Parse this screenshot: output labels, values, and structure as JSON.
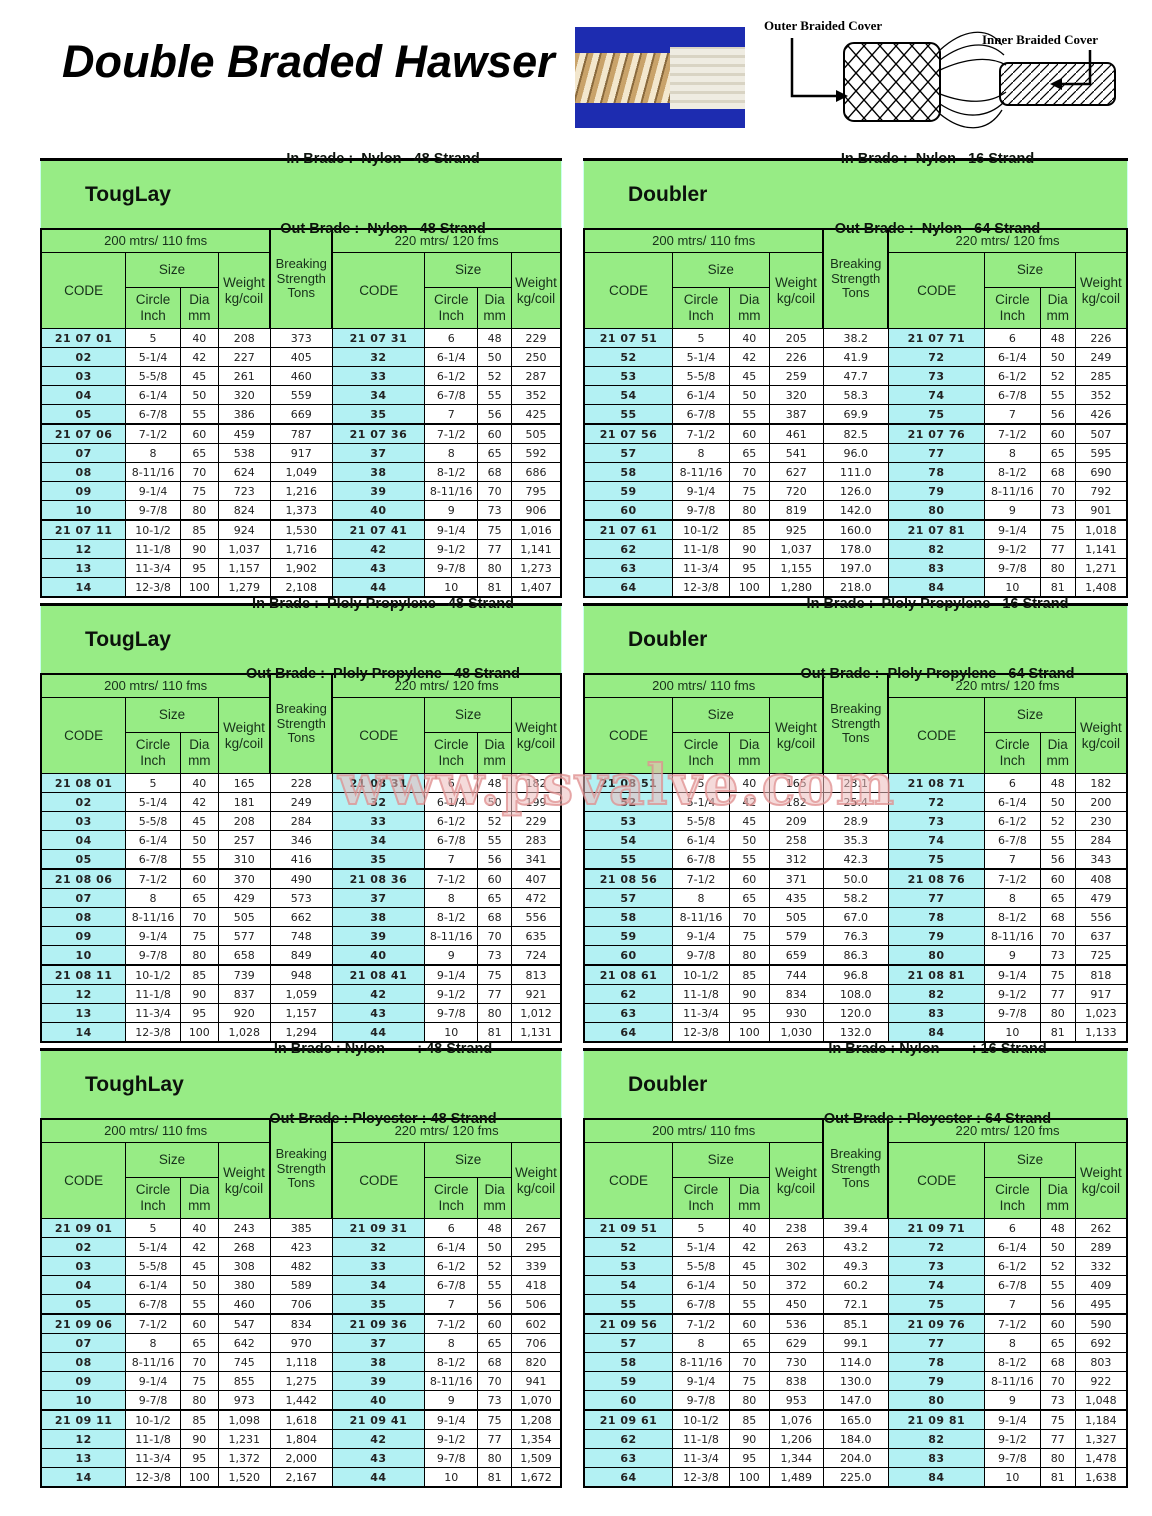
{
  "page": {
    "title": "Double Braded Hawser",
    "watermark": "www.psvalve.com",
    "outer_label": "Outer Braided Cover",
    "inner_label": "Inner Braided Cover"
  },
  "columns": {
    "span_200": "200 mtrs/ 110 fms",
    "span_220": "220 mtrs/ 120 fms",
    "code": "CODE",
    "size": "Size",
    "circle": "Circle\nInch",
    "dia": "Dia\nmm",
    "weight": "Weight\nkg/coil",
    "breaking": "Breaking\nStrength\nTons"
  },
  "tables": [
    {
      "title": "TougLay",
      "in_brade": "In Brade :  Nylon   48 Strand",
      "out_brade": "Out Brade :  Nylon   48 Strand",
      "rows": [
        [
          "21 07 01",
          "5",
          "40",
          "208",
          "373",
          "21 07 31",
          "6",
          "48",
          "229"
        ],
        [
          "02",
          "5-1/4",
          "42",
          "227",
          "405",
          "32",
          "6-1/4",
          "50",
          "250"
        ],
        [
          "03",
          "5-5/8",
          "45",
          "261",
          "460",
          "33",
          "6-1/2",
          "52",
          "287"
        ],
        [
          "04",
          "6-1/4",
          "50",
          "320",
          "559",
          "34",
          "6-7/8",
          "55",
          "352"
        ],
        [
          "05",
          "6-7/8",
          "55",
          "386",
          "669",
          "35",
          "7",
          "56",
          "425"
        ],
        [
          "21 07 06",
          "7-1/2",
          "60",
          "459",
          "787",
          "21 07 36",
          "7-1/2",
          "60",
          "505"
        ],
        [
          "07",
          "8",
          "65",
          "538",
          "917",
          "37",
          "8",
          "65",
          "592"
        ],
        [
          "08",
          "8-11/16",
          "70",
          "624",
          "1,049",
          "38",
          "8-1/2",
          "68",
          "686"
        ],
        [
          "09",
          "9-1/4",
          "75",
          "723",
          "1,216",
          "39",
          "8-11/16",
          "70",
          "795"
        ],
        [
          "10",
          "9-7/8",
          "80",
          "824",
          "1,373",
          "40",
          "9",
          "73",
          "906"
        ],
        [
          "21 07 11",
          "10-1/2",
          "85",
          "924",
          "1,530",
          "21 07 41",
          "9-1/4",
          "75",
          "1,016"
        ],
        [
          "12",
          "11-1/8",
          "90",
          "1,037",
          "1,716",
          "42",
          "9-1/2",
          "77",
          "1,141"
        ],
        [
          "13",
          "11-3/4",
          "95",
          "1,157",
          "1,902",
          "43",
          "9-7/8",
          "80",
          "1,273"
        ],
        [
          "14",
          "12-3/8",
          "100",
          "1,279",
          "2,108",
          "44",
          "10",
          "81",
          "1,407"
        ]
      ]
    },
    {
      "title": "Doubler",
      "in_brade": "In Brade :  Nylon   16 Strand",
      "out_brade": "Out Brade :  Nylon   64 Strand",
      "rows": [
        [
          "21 07 51",
          "5",
          "40",
          "205",
          "38.2",
          "21 07 71",
          "6",
          "48",
          "226"
        ],
        [
          "52",
          "5-1/4",
          "42",
          "226",
          "41.9",
          "72",
          "6-1/4",
          "50",
          "249"
        ],
        [
          "53",
          "5-5/8",
          "45",
          "259",
          "47.7",
          "73",
          "6-1/2",
          "52",
          "285"
        ],
        [
          "54",
          "6-1/4",
          "50",
          "320",
          "58.3",
          "74",
          "6-7/8",
          "55",
          "352"
        ],
        [
          "55",
          "6-7/8",
          "55",
          "387",
          "69.9",
          "75",
          "7",
          "56",
          "426"
        ],
        [
          "21 07 56",
          "7-1/2",
          "60",
          "461",
          "82.5",
          "21 07 76",
          "7-1/2",
          "60",
          "507"
        ],
        [
          "57",
          "8",
          "65",
          "541",
          "96.0",
          "77",
          "8",
          "65",
          "595"
        ],
        [
          "58",
          "8-11/16",
          "70",
          "627",
          "111.0",
          "78",
          "8-1/2",
          "68",
          "690"
        ],
        [
          "59",
          "9-1/4",
          "75",
          "720",
          "126.0",
          "79",
          "8-11/16",
          "70",
          "792"
        ],
        [
          "60",
          "9-7/8",
          "80",
          "819",
          "142.0",
          "80",
          "9",
          "73",
          "901"
        ],
        [
          "21 07 61",
          "10-1/2",
          "85",
          "925",
          "160.0",
          "21 07 81",
          "9-1/4",
          "75",
          "1,018"
        ],
        [
          "62",
          "11-1/8",
          "90",
          "1,037",
          "178.0",
          "82",
          "9-1/2",
          "77",
          "1,141"
        ],
        [
          "63",
          "11-3/4",
          "95",
          "1,155",
          "197.0",
          "83",
          "9-7/8",
          "80",
          "1,271"
        ],
        [
          "64",
          "12-3/8",
          "100",
          "1,280",
          "218.0",
          "84",
          "10",
          "81",
          "1,408"
        ]
      ]
    },
    {
      "title": "TougLay",
      "in_brade": "In Brade :  Ploly Propylene   48 Strand",
      "out_brade": "Out Brade :  Ploly Propylene   48 Strand",
      "rows": [
        [
          "21 08 01",
          "5",
          "40",
          "165",
          "228",
          "21 08 31",
          "6",
          "48",
          "182"
        ],
        [
          "02",
          "5-1/4",
          "42",
          "181",
          "249",
          "32",
          "6-1/4",
          "50",
          "199"
        ],
        [
          "03",
          "5-5/8",
          "45",
          "208",
          "284",
          "33",
          "6-1/2",
          "52",
          "229"
        ],
        [
          "04",
          "6-1/4",
          "50",
          "257",
          "346",
          "34",
          "6-7/8",
          "55",
          "283"
        ],
        [
          "05",
          "6-7/8",
          "55",
          "310",
          "416",
          "35",
          "7",
          "56",
          "341"
        ],
        [
          "21 08 06",
          "7-1/2",
          "60",
          "370",
          "490",
          "21 08 36",
          "7-1/2",
          "60",
          "407"
        ],
        [
          "07",
          "8",
          "65",
          "429",
          "573",
          "37",
          "8",
          "65",
          "472"
        ],
        [
          "08",
          "8-11/16",
          "70",
          "505",
          "662",
          "38",
          "8-1/2",
          "68",
          "556"
        ],
        [
          "09",
          "9-1/4",
          "75",
          "577",
          "748",
          "39",
          "8-11/16",
          "70",
          "635"
        ],
        [
          "10",
          "9-7/8",
          "80",
          "658",
          "849",
          "40",
          "9",
          "73",
          "724"
        ],
        [
          "21 08 11",
          "10-1/2",
          "85",
          "739",
          "948",
          "21 08 41",
          "9-1/4",
          "75",
          "813"
        ],
        [
          "12",
          "11-1/8",
          "90",
          "837",
          "1,059",
          "42",
          "9-1/2",
          "77",
          "921"
        ],
        [
          "13",
          "11-3/4",
          "95",
          "920",
          "1,157",
          "43",
          "9-7/8",
          "80",
          "1,012"
        ],
        [
          "14",
          "12-3/8",
          "100",
          "1,028",
          "1,294",
          "44",
          "10",
          "81",
          "1,131"
        ]
      ]
    },
    {
      "title": "Doubler",
      "in_brade": "In Brade :  Ploly Propylene   16 Strand",
      "out_brade": "Out Brade :  Ploly Propylene   64 Strand",
      "rows": [
        [
          "21 08 51",
          "5",
          "40",
          "165",
          "23.1",
          "21 08 71",
          "6",
          "48",
          "182"
        ],
        [
          "52",
          "5-1/4",
          "42",
          "182",
          "25.4",
          "72",
          "6-1/4",
          "50",
          "200"
        ],
        [
          "53",
          "5-5/8",
          "45",
          "209",
          "28.9",
          "73",
          "6-1/2",
          "52",
          "230"
        ],
        [
          "54",
          "6-1/4",
          "50",
          "258",
          "35.3",
          "74",
          "6-7/8",
          "55",
          "284"
        ],
        [
          "55",
          "6-7/8",
          "55",
          "312",
          "42.3",
          "75",
          "7",
          "56",
          "343"
        ],
        [
          "21 08 56",
          "7-1/2",
          "60",
          "371",
          "50.0",
          "21 08 76",
          "7-1/2",
          "60",
          "408"
        ],
        [
          "57",
          "8",
          "65",
          "435",
          "58.2",
          "77",
          "8",
          "65",
          "479"
        ],
        [
          "58",
          "8-11/16",
          "70",
          "505",
          "67.0",
          "78",
          "8-1/2",
          "68",
          "556"
        ],
        [
          "59",
          "9-1/4",
          "75",
          "579",
          "76.3",
          "79",
          "8-11/16",
          "70",
          "637"
        ],
        [
          "60",
          "9-7/8",
          "80",
          "659",
          "86.3",
          "80",
          "9",
          "73",
          "725"
        ],
        [
          "21 08 61",
          "10-1/2",
          "85",
          "744",
          "96.8",
          "21 08 81",
          "9-1/4",
          "75",
          "818"
        ],
        [
          "62",
          "11-1/8",
          "90",
          "834",
          "108.0",
          "82",
          "9-1/2",
          "77",
          "917"
        ],
        [
          "63",
          "11-3/4",
          "95",
          "930",
          "120.0",
          "83",
          "9-7/8",
          "80",
          "1,023"
        ],
        [
          "64",
          "12-3/8",
          "100",
          "1,030",
          "132.0",
          "84",
          "10",
          "81",
          "1,133"
        ]
      ]
    },
    {
      "title": "ToughLay",
      "in_brade": "In Brade : Nylon        : 48 Strand",
      "out_brade": "Out Brade : Ployester : 48 Strand",
      "rows": [
        [
          "21 09 01",
          "5",
          "40",
          "243",
          "385",
          "21 09 31",
          "6",
          "48",
          "267"
        ],
        [
          "02",
          "5-1/4",
          "42",
          "268",
          "423",
          "32",
          "6-1/4",
          "50",
          "295"
        ],
        [
          "03",
          "5-5/8",
          "45",
          "308",
          "482",
          "33",
          "6-1/2",
          "52",
          "339"
        ],
        [
          "04",
          "6-1/4",
          "50",
          "380",
          "589",
          "34",
          "6-7/8",
          "55",
          "418"
        ],
        [
          "05",
          "6-7/8",
          "55",
          "460",
          "706",
          "35",
          "7",
          "56",
          "506"
        ],
        [
          "21 09 06",
          "7-1/2",
          "60",
          "547",
          "834",
          "21 09 36",
          "7-1/2",
          "60",
          "602"
        ],
        [
          "07",
          "8",
          "65",
          "642",
          "970",
          "37",
          "8",
          "65",
          "706"
        ],
        [
          "08",
          "8-11/16",
          "70",
          "745",
          "1,118",
          "38",
          "8-1/2",
          "68",
          "820"
        ],
        [
          "09",
          "9-1/4",
          "75",
          "855",
          "1,275",
          "39",
          "8-11/16",
          "70",
          "941"
        ],
        [
          "10",
          "9-7/8",
          "80",
          "973",
          "1,442",
          "40",
          "9",
          "73",
          "1,070"
        ],
        [
          "21 09 11",
          "10-1/2",
          "85",
          "1,098",
          "1,618",
          "21 09 41",
          "9-1/4",
          "75",
          "1,208"
        ],
        [
          "12",
          "11-1/8",
          "90",
          "1,231",
          "1,804",
          "42",
          "9-1/2",
          "77",
          "1,354"
        ],
        [
          "13",
          "11-3/4",
          "95",
          "1,372",
          "2,000",
          "43",
          "9-7/8",
          "80",
          "1,509"
        ],
        [
          "14",
          "12-3/8",
          "100",
          "1,520",
          "2,167",
          "44",
          "10",
          "81",
          "1,672"
        ]
      ]
    },
    {
      "title": "Doubler",
      "in_brade": "In Brade : Nylon        : 16 Strand",
      "out_brade": "Out Brade : Ployester : 64 Strand",
      "rows": [
        [
          "21 09 51",
          "5",
          "40",
          "238",
          "39.4",
          "21 09 71",
          "6",
          "48",
          "262"
        ],
        [
          "52",
          "5-1/4",
          "42",
          "263",
          "43.2",
          "72",
          "6-1/4",
          "50",
          "289"
        ],
        [
          "53",
          "5-5/8",
          "45",
          "302",
          "49.3",
          "73",
          "6-1/2",
          "52",
          "332"
        ],
        [
          "54",
          "6-1/4",
          "50",
          "372",
          "60.2",
          "74",
          "6-7/8",
          "55",
          "409"
        ],
        [
          "55",
          "6-7/8",
          "55",
          "450",
          "72.1",
          "75",
          "7",
          "56",
          "495"
        ],
        [
          "21 09 56",
          "7-1/2",
          "60",
          "536",
          "85.1",
          "21 09 76",
          "7-1/2",
          "60",
          "590"
        ],
        [
          "57",
          "8",
          "65",
          "629",
          "99.1",
          "77",
          "8",
          "65",
          "692"
        ],
        [
          "58",
          "8-11/16",
          "70",
          "730",
          "114.0",
          "78",
          "8-1/2",
          "68",
          "803"
        ],
        [
          "59",
          "9-1/4",
          "75",
          "838",
          "130.0",
          "79",
          "8-11/16",
          "70",
          "922"
        ],
        [
          "60",
          "9-7/8",
          "80",
          "953",
          "147.0",
          "80",
          "9",
          "73",
          "1,048"
        ],
        [
          "21 09 61",
          "10-1/2",
          "85",
          "1,076",
          "165.0",
          "21 09 81",
          "9-1/4",
          "75",
          "1,184"
        ],
        [
          "62",
          "11-1/8",
          "90",
          "1,206",
          "184.0",
          "82",
          "9-1/2",
          "77",
          "1,327"
        ],
        [
          "63",
          "11-3/4",
          "95",
          "1,344",
          "204.0",
          "83",
          "9-7/8",
          "80",
          "1,478"
        ],
        [
          "64",
          "12-3/8",
          "100",
          "1,489",
          "225.0",
          "84",
          "10",
          "81",
          "1,638"
        ]
      ]
    }
  ]
}
